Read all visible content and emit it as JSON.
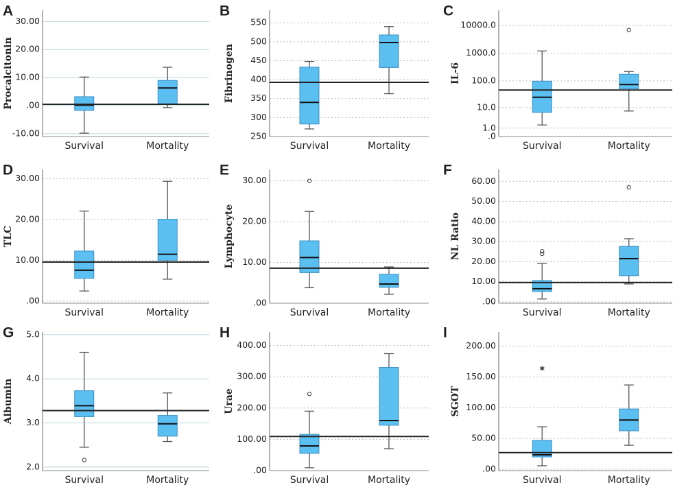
{
  "chart_data": [
    {
      "type": "box",
      "label": "A",
      "ylabel": "Procalcitonin",
      "categories": [
        "Survival",
        "Mortality"
      ],
      "values": [
        {
          "min": -9.8,
          "q1": -1.7,
          "median": 0.2,
          "q3": 3.2,
          "max": 10.2,
          "outliers": []
        },
        {
          "min": -0.7,
          "q1": 0.7,
          "median": 6.3,
          "q3": 9,
          "max": 13.7,
          "outliers": []
        }
      ],
      "reference_line": 0.5,
      "ylim": [
        -11,
        34
      ],
      "yticks": [
        {
          "value": 30,
          "label": "30.00"
        },
        {
          "value": 20,
          "label": "20.00"
        },
        {
          "value": 10,
          "label": "10.00"
        },
        {
          "value": 0,
          "label": ".00"
        },
        {
          "value": -10,
          "label": "-10.00"
        }
      ],
      "grid": "solid",
      "color": "#5bbff2"
    },
    {
      "type": "box",
      "label": "B",
      "ylabel": "Fibrinogen",
      "categories": [
        "Survival",
        "Mortality"
      ],
      "values": [
        {
          "min": 270,
          "q1": 283,
          "median": 340,
          "q3": 433,
          "max": 448,
          "outliers": []
        },
        {
          "min": 363,
          "q1": 432,
          "median": 498,
          "q3": 518,
          "max": 540,
          "outliers": []
        }
      ],
      "reference_line": 393,
      "ylim": [
        250,
        583
      ],
      "yticks": [
        550,
        500,
        450,
        400,
        350,
        300,
        250
      ],
      "grid": "dashed",
      "color": "#5bbff2"
    },
    {
      "type": "box",
      "label": "C",
      "ylabel": "IL-6",
      "categories": [
        "Survival",
        "Mortality"
      ],
      "yscale": "log1p",
      "values": [
        {
          "min": 1.6,
          "q1": 6.4,
          "median": 25,
          "q3": 97,
          "max": 1200,
          "outliers": []
        },
        {
          "min": 7.3,
          "q1": 51,
          "median": 73,
          "q3": 173,
          "max": 218,
          "outliers": [
            6800
          ]
        }
      ],
      "outlier_marker": "circle",
      "reference_line": 46,
      "ylim": [
        0,
        35000
      ],
      "yticks": [
        {
          "value": 10000,
          "label": "10000.0"
        },
        {
          "value": 1000,
          "label": "1000.0"
        },
        {
          "value": 100,
          "label": "100.0"
        },
        {
          "value": 10,
          "label": "10.0"
        },
        {
          "value": 1,
          "label": "1.0"
        },
        {
          "value": 0,
          "label": ".0"
        }
      ],
      "grid": "dashed",
      "color": "#5bbff2"
    },
    {
      "type": "box",
      "label": "D",
      "ylabel": "TLC",
      "categories": [
        "Survival",
        "Mortality"
      ],
      "values": [
        {
          "min": 2.5,
          "q1": 5.6,
          "median": 7.6,
          "q3": 12.3,
          "max": 22.1,
          "outliers": []
        },
        {
          "min": 5.4,
          "q1": 10,
          "median": 11.5,
          "q3": 20.1,
          "max": 29.4,
          "outliers": []
        }
      ],
      "reference_line": 9.6,
      "ylim": [
        -0.5,
        32.3
      ],
      "yticks": [
        {
          "value": 30,
          "label": "30.00"
        },
        {
          "value": 20,
          "label": "20.00"
        },
        {
          "value": 10,
          "label": "10.00"
        },
        {
          "value": 0,
          "label": ".00"
        }
      ],
      "grid": "dashed",
      "color": "#5bbff2"
    },
    {
      "type": "box",
      "label": "E",
      "ylabel": "Lymphocyte",
      "categories": [
        "Survival",
        "Mortality"
      ],
      "values": [
        {
          "min": 3.8,
          "q1": 7.5,
          "median": 11.2,
          "q3": 15.3,
          "max": 22.5,
          "outliers": [
            30
          ]
        },
        {
          "min": 2.2,
          "q1": 3.9,
          "median": 4.7,
          "q3": 7.1,
          "max": 8.9,
          "outliers": []
        }
      ],
      "outlier_marker": "circle",
      "reference_line": 8.6,
      "ylim": [
        0,
        32.8
      ],
      "yticks": [
        {
          "value": 30,
          "label": "30.00"
        },
        {
          "value": 20,
          "label": "20.00"
        },
        {
          "value": 10,
          "label": "10.00"
        },
        {
          "value": 0,
          "label": ".00"
        }
      ],
      "grid": "dashed",
      "color": "#5bbff2"
    },
    {
      "type": "box",
      "label": "F",
      "ylabel": "NL Ratio",
      "categories": [
        "Survival",
        "Mortality"
      ],
      "values": [
        {
          "min": 1.4,
          "q1": 5.1,
          "median": 6.5,
          "q3": 10.6,
          "max": 19.1,
          "outliers": [
            23.9,
            25.2
          ]
        },
        {
          "min": 8.9,
          "q1": 13,
          "median": 21.5,
          "q3": 27.6,
          "max": 31.4,
          "outliers": [
            57
          ]
        }
      ],
      "outlier_marker": "circle",
      "reference_line": 9.6,
      "ylim": [
        -0.7,
        65.9
      ],
      "yticks": [
        {
          "value": 60,
          "label": "60.00"
        },
        {
          "value": 50,
          "label": "50.00"
        },
        {
          "value": 40,
          "label": "40.00"
        },
        {
          "value": 30,
          "label": "30.00"
        },
        {
          "value": 20,
          "label": "20.00"
        },
        {
          "value": 10,
          "label": "10.00"
        },
        {
          "value": 0,
          "label": ".00"
        }
      ],
      "grid": "dashed",
      "color": "#5bbff2"
    },
    {
      "type": "box",
      "label": "G",
      "ylabel": "Albumin",
      "categories": [
        "Survival",
        "Mortality"
      ],
      "values": [
        {
          "min": 2.45,
          "q1": 3.14,
          "median": 3.39,
          "q3": 3.73,
          "max": 4.6,
          "outliers": [
            2.16
          ]
        },
        {
          "min": 2.58,
          "q1": 2.7,
          "median": 2.98,
          "q3": 3.17,
          "max": 3.68,
          "outliers": []
        }
      ],
      "outlier_marker": "circle",
      "reference_line": 3.28,
      "ylim": [
        1.92,
        5.06
      ],
      "yticks": [
        {
          "value": 5,
          "label": "5.0"
        },
        {
          "value": 4,
          "label": "4.0"
        },
        {
          "value": 3,
          "label": "3.0"
        },
        {
          "value": 2,
          "label": "2.0"
        }
      ],
      "grid": "solid",
      "color": "#5bbff2"
    },
    {
      "type": "box",
      "label": "H",
      "ylabel": "Urae",
      "categories": [
        "Survival",
        "Mortality"
      ],
      "values": [
        {
          "min": 9,
          "q1": 55,
          "median": 79,
          "q3": 116,
          "max": 190,
          "outliers": [
            245
          ]
        },
        {
          "min": 70,
          "q1": 145,
          "median": 160,
          "q3": 330,
          "max": 374,
          "outliers": []
        }
      ],
      "outlier_marker": "circle",
      "reference_line": 109,
      "ylim": [
        0,
        443
      ],
      "yticks": [
        {
          "value": 400,
          "label": "400.00"
        },
        {
          "value": 300,
          "label": "300.00"
        },
        {
          "value": 200,
          "label": "200.00"
        },
        {
          "value": 100,
          "label": "100.00"
        },
        {
          "value": 0,
          "label": ".00"
        }
      ],
      "grid": "dashed",
      "color": "#5bbff2"
    },
    {
      "type": "box",
      "label": "I",
      "ylabel": "SGOT",
      "categories": [
        "Survival",
        "Mortality"
      ],
      "values": [
        {
          "min": 5.6,
          "q1": 20,
          "median": 23.4,
          "q3": 47,
          "max": 69,
          "outliers": [
            164
          ]
        },
        {
          "min": 39,
          "q1": 62.5,
          "median": 80,
          "q3": 98,
          "max": 137,
          "outliers": []
        }
      ],
      "outlier_marker": "star",
      "reference_line": 27,
      "ylim": [
        -2.2,
        223
      ],
      "yticks": [
        {
          "value": 200,
          "label": "200.00"
        },
        {
          "value": 150,
          "label": "150.00"
        },
        {
          "value": 100,
          "label": "100.00"
        },
        {
          "value": 50,
          "label": "50.00"
        },
        {
          "value": 0,
          "label": ".00"
        }
      ],
      "grid": "dashed",
      "color": "#5bbff2"
    }
  ]
}
